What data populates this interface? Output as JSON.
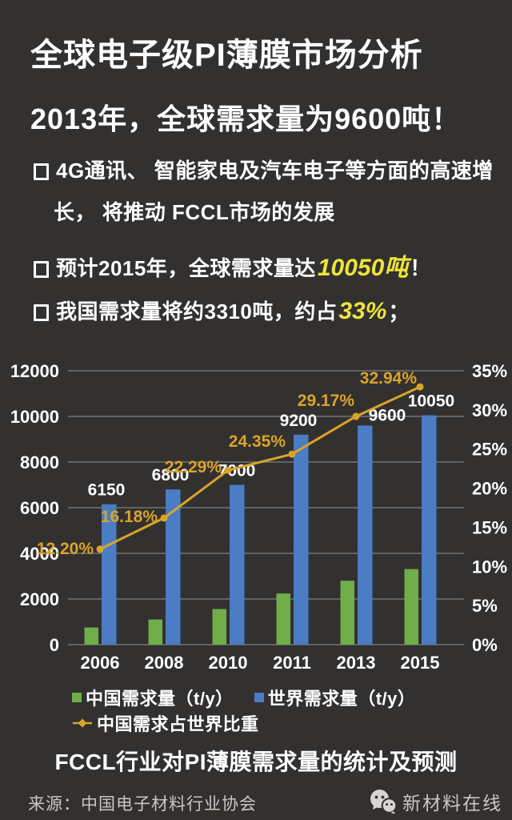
{
  "header": {
    "title": "全球电子级PI薄膜市场分析",
    "subtitle": "2013年，全球需求量为9600吨！"
  },
  "bullets": {
    "item1_line1": "4G通讯、 智能家电及汽车电子等方面的高速增",
    "item1_line2": "长， 将推动 FCCL市场的发展",
    "item2_prefix": "预计2015年，全球需求量达",
    "item2_highlight": "10050吨",
    "item2_suffix": "！",
    "item3_prefix": "我国需求量将约3310吨，约占",
    "item3_highlight": "33%",
    "item3_suffix": "；"
  },
  "chart_data": {
    "type": "bar",
    "subtype": "combo-bar-line-dual-axis",
    "categories": [
      "2006",
      "2008",
      "2010",
      "2011",
      "2013",
      "2015"
    ],
    "series": [
      {
        "name": "中国需求量（t/y）",
        "type": "bar",
        "color": "#6FAE4A",
        "axis": "left",
        "values": [
          750,
          1100,
          1560,
          2240,
          2800,
          3310
        ]
      },
      {
        "name": "世界需求量（t/y）",
        "type": "bar",
        "color": "#4A7DC3",
        "axis": "left",
        "values": [
          6150,
          6800,
          7000,
          9200,
          9600,
          10050
        ]
      },
      {
        "name": "中国需求占世界比重",
        "type": "line",
        "color": "#D9A428",
        "axis": "right",
        "values": [
          12.2,
          16.18,
          22.29,
          24.35,
          29.17,
          32.94
        ]
      }
    ],
    "bar_value_labels": [
      "6150",
      "6800",
      "7000",
      "9200",
      "9600",
      "10050"
    ],
    "line_value_labels": [
      "12.20%",
      "16.18%",
      "22.29%",
      "24.35%",
      "29.17%",
      "32.94%"
    ],
    "left_axis": {
      "min": 0,
      "max": 12000,
      "step": 2000,
      "ticks": [
        "12000",
        "10000",
        "8000",
        "6000",
        "4000",
        "2000",
        "0"
      ]
    },
    "right_axis": {
      "min": 0,
      "max": 35,
      "step": 5,
      "ticks": [
        "35%",
        "30%",
        "25%",
        "20%",
        "15%",
        "10%",
        "5%",
        "0%"
      ]
    },
    "grid": "horizontal-left-axis",
    "legend_position": "bottom-left",
    "label_color_line": "#D9A428",
    "label_color_bars": "#FFFFFF",
    "title": "FCCL行业对PI薄膜需求量的统计及预测"
  },
  "caption": "FCCL行业对PI薄膜需求量的统计及预测",
  "footer": {
    "source": "来源：中国电子材料行业协会",
    "wechat_name": "新材料在线",
    "wechat_icon": "wechat-logo"
  },
  "colors": {
    "background": "#333130",
    "highlight_yellow": "#ECE43C",
    "gridline": "#999999",
    "text_primary": "#FFFFFF",
    "text_footer": "#C9C7C5"
  }
}
